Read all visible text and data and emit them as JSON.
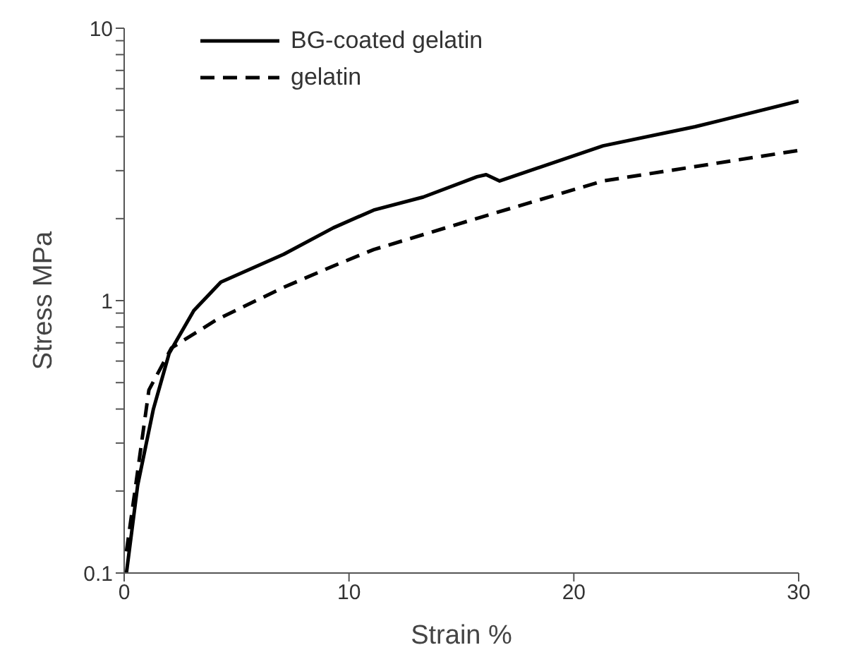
{
  "chart_data": {
    "type": "line",
    "xlabel": "Strain %",
    "ylabel": "Stress MPa",
    "log": "y",
    "xlim": [
      0,
      30
    ],
    "xticks": [
      0,
      10,
      20,
      30
    ],
    "ylim": [
      0.1,
      10
    ],
    "yticks": [
      0.1,
      {
        "value": 0.2,
        "label": null
      },
      {
        "value": 0.3,
        "label": null
      },
      {
        "value": 0.4,
        "label": null
      },
      {
        "value": 0.5,
        "label": null
      },
      {
        "value": 0.6,
        "label": null
      },
      {
        "value": 0.7,
        "label": null
      },
      {
        "value": 0.8,
        "label": null
      },
      {
        "value": 0.9,
        "label": null
      },
      1,
      {
        "value": 2,
        "label": null
      },
      {
        "value": 3,
        "label": null
      },
      {
        "value": 4,
        "label": null
      },
      {
        "value": 5,
        "label": null
      },
      {
        "value": 6,
        "label": null
      },
      {
        "value": 7,
        "label": null
      },
      {
        "value": 8,
        "label": null
      },
      {
        "value": 9,
        "label": null
      },
      10
    ],
    "grid": false,
    "legend": "top left",
    "marker": "none",
    "series": [
      {
        "name": "BG-coated gelatin",
        "color": "#000000",
        "line_style": "solid",
        "x": [
          0.1,
          0.6,
          1.3,
          2.0,
          3.1,
          4.3,
          7.1,
          9.3,
          11.1,
          13.3,
          15.7,
          16.1,
          16.7,
          21.3,
          25.4,
          30
        ],
        "values": [
          0.1,
          0.21,
          0.4,
          0.64,
          0.92,
          1.17,
          1.48,
          1.85,
          2.15,
          2.4,
          2.85,
          2.9,
          2.75,
          3.7,
          4.35,
          5.4
        ]
      },
      {
        "name": "gelatin",
        "color": "#000000",
        "line_style": "dashed",
        "x": [
          0.1,
          0.4,
          1.1,
          2.1,
          4.1,
          7.1,
          9.3,
          11.1,
          15.3,
          21.3,
          30
        ],
        "values": [
          0.12,
          0.18,
          0.47,
          0.67,
          0.85,
          1.12,
          1.34,
          1.54,
          1.96,
          2.75,
          3.56
        ]
      }
    ]
  }
}
